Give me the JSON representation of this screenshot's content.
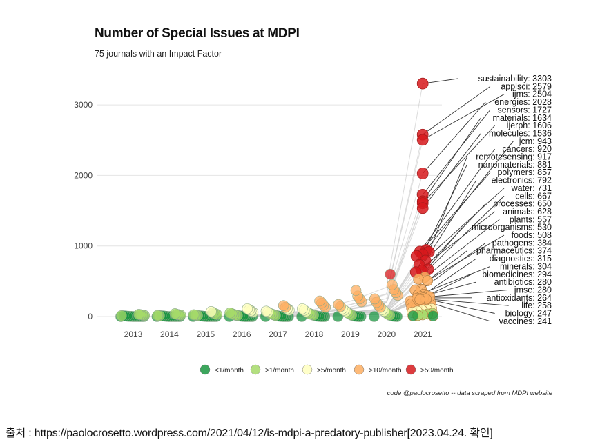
{
  "chart_data": {
    "type": "scatter",
    "title": "Number of Special Issues at MDPI",
    "subtitle": "75 journals with an Impact Factor",
    "caption": "code @paolocrosetto -- data scraped from MDPI website",
    "x": [
      "2013",
      "2014",
      "2015",
      "2016",
      "2017",
      "2018",
      "2019",
      "2020",
      "2021"
    ],
    "ylim": [
      0,
      3400
    ],
    "yticks": [
      0,
      1000,
      2000,
      3000
    ],
    "grid": true,
    "legend_position": "bottom",
    "legend": [
      {
        "label": "<1/month",
        "color": "#1a9641"
      },
      {
        "label": ">1/month",
        "color": "#a6d96a"
      },
      {
        "label": ">5/month",
        "color": "#ffffbf"
      },
      {
        "label": ">10/month",
        "color": "#fdae61"
      },
      {
        "label": ">50/month",
        "color": "#d7191c"
      }
    ],
    "labeled_2021": [
      {
        "journal": "sustainability",
        "value": 3303
      },
      {
        "journal": "applsci",
        "value": 2579
      },
      {
        "journal": "ijms",
        "value": 2504
      },
      {
        "journal": "energies",
        "value": 2028
      },
      {
        "journal": "sensors",
        "value": 1727
      },
      {
        "journal": "materials",
        "value": 1634
      },
      {
        "journal": "ijerph",
        "value": 1606
      },
      {
        "journal": "molecules",
        "value": 1536
      },
      {
        "journal": "jcm",
        "value": 943
      },
      {
        "journal": "cancers",
        "value": 920
      },
      {
        "journal": "remotesensing",
        "value": 917
      },
      {
        "journal": "nanomaterials",
        "value": 881
      },
      {
        "journal": "polymers",
        "value": 857
      },
      {
        "journal": "electronics",
        "value": 792
      },
      {
        "journal": "water",
        "value": 731
      },
      {
        "journal": "cells",
        "value": 667
      },
      {
        "journal": "processes",
        "value": 650
      },
      {
        "journal": "animals",
        "value": 628
      },
      {
        "journal": "plants",
        "value": 557
      },
      {
        "journal": "microorganisms",
        "value": 530
      },
      {
        "journal": "foods",
        "value": 508
      },
      {
        "journal": "pathogens",
        "value": 384
      },
      {
        "journal": "pharmaceutics",
        "value": 374
      },
      {
        "journal": "diagnostics",
        "value": 315
      },
      {
        "journal": "minerals",
        "value": 304
      },
      {
        "journal": "biomedicines",
        "value": 294
      },
      {
        "journal": "antibiotics",
        "value": 280
      },
      {
        "journal": "jmse",
        "value": 280
      },
      {
        "journal": "antioxidants",
        "value": 264
      },
      {
        "journal": "life",
        "value": 258
      },
      {
        "journal": "biology",
        "value": 247
      },
      {
        "journal": "vaccines",
        "value": 241
      }
    ],
    "unlabeled_2021_values": [
      220,
      210,
      200,
      195,
      185,
      175,
      165,
      150,
      140,
      130,
      120,
      110,
      100,
      90,
      75,
      60,
      45,
      35,
      25,
      15,
      10,
      8
    ],
    "history": {
      "2013": [
        0,
        0,
        0,
        0,
        0,
        0,
        0,
        0,
        2,
        3,
        5,
        8,
        10,
        12,
        15,
        20,
        25,
        30
      ],
      "2014": [
        0,
        0,
        0,
        0,
        0,
        0,
        0,
        0,
        2,
        5,
        8,
        10,
        12,
        15,
        20,
        25,
        30,
        40
      ],
      "2015": [
        0,
        0,
        0,
        0,
        0,
        0,
        0,
        2,
        5,
        8,
        10,
        15,
        20,
        25,
        30,
        40,
        55,
        70
      ],
      "2016": [
        0,
        0,
        0,
        0,
        0,
        0,
        2,
        5,
        10,
        15,
        20,
        30,
        40,
        50,
        60,
        80,
        95,
        110
      ],
      "2017": [
        0,
        0,
        0,
        0,
        0,
        2,
        5,
        10,
        15,
        25,
        35,
        45,
        60,
        75,
        90,
        110,
        130,
        155
      ],
      "2018": [
        0,
        0,
        0,
        0,
        2,
        5,
        10,
        20,
        30,
        40,
        55,
        70,
        90,
        110,
        130,
        160,
        190,
        220
      ],
      "2019": [
        0,
        0,
        0,
        2,
        5,
        10,
        20,
        35,
        50,
        70,
        90,
        110,
        140,
        170,
        210,
        250,
        290,
        370
      ],
      "2020": [
        0,
        0,
        2,
        5,
        10,
        20,
        35,
        55,
        75,
        100,
        130,
        160,
        200,
        250,
        300,
        340,
        380,
        450,
        600
      ]
    }
  },
  "source_note": "출처 : https://paolocrosetto.wordpress.com/2021/04/12/is-mdpi-a-predatory-publisher[2023.04.24. 확인]"
}
